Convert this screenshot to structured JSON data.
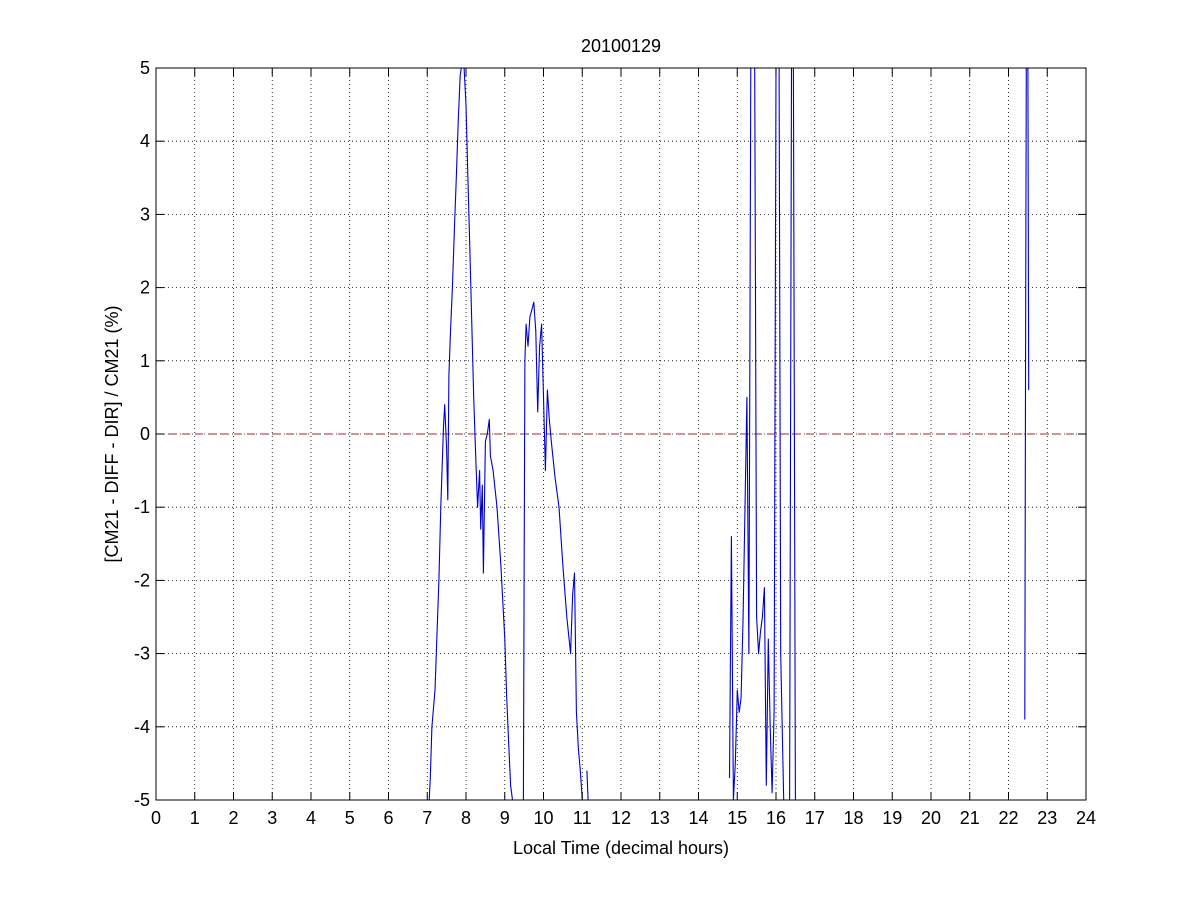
{
  "chart_data": {
    "type": "line",
    "title": "20100129",
    "xlabel": "Local Time (decimal hours)",
    "ylabel": "[CM21 - DIFF - DIR] / CM21 (%)",
    "xlim": [
      0,
      24
    ],
    "ylim": [
      -5,
      5
    ],
    "xticks": [
      0,
      1,
      2,
      3,
      4,
      5,
      6,
      7,
      8,
      9,
      10,
      11,
      12,
      13,
      14,
      15,
      16,
      17,
      18,
      19,
      20,
      21,
      22,
      23,
      24
    ],
    "yticks": [
      -5,
      -4,
      -3,
      -2,
      -1,
      0,
      1,
      2,
      3,
      4,
      5
    ],
    "grid": true,
    "reference_line": {
      "y": 0,
      "color": "#a52a2a",
      "style": "dashed"
    },
    "series": [
      {
        "color": "#0000cc",
        "segments": [
          [
            [
              7.05,
              -5
            ],
            [
              7.08,
              -4.7
            ],
            [
              7.12,
              -4.0
            ],
            [
              7.2,
              -3.5
            ],
            [
              7.3,
              -2.0
            ],
            [
              7.35,
              -1.0
            ],
            [
              7.42,
              0.1
            ],
            [
              7.45,
              0.4
            ],
            [
              7.5,
              -0.2
            ],
            [
              7.53,
              -0.9
            ],
            [
              7.56,
              0.8
            ],
            [
              7.6,
              1.4
            ],
            [
              7.65,
              2.0
            ],
            [
              7.7,
              2.8
            ],
            [
              7.75,
              3.5
            ],
            [
              7.8,
              4.3
            ],
            [
              7.85,
              4.9
            ],
            [
              7.88,
              5
            ]
          ],
          [
            [
              7.95,
              5
            ],
            [
              8.0,
              4.5
            ],
            [
              8.05,
              3.5
            ],
            [
              8.1,
              2.5
            ],
            [
              8.15,
              1.5
            ],
            [
              8.2,
              0.5
            ],
            [
              8.25,
              -0.3
            ],
            [
              8.3,
              -1.0
            ],
            [
              8.35,
              -0.5
            ],
            [
              8.38,
              -1.3
            ],
            [
              8.42,
              -0.7
            ],
            [
              8.45,
              -1.9
            ],
            [
              8.5,
              -0.1
            ],
            [
              8.55,
              0.0
            ],
            [
              8.6,
              0.2
            ],
            [
              8.63,
              -0.3
            ],
            [
              8.7,
              -0.5
            ],
            [
              8.8,
              -1.0
            ],
            [
              8.9,
              -1.8
            ],
            [
              9.0,
              -2.8
            ],
            [
              9.05,
              -3.6
            ],
            [
              9.1,
              -4.2
            ],
            [
              9.15,
              -4.8
            ],
            [
              9.2,
              -5
            ]
          ],
          [
            [
              9.48,
              -5
            ],
            [
              9.5,
              -2.0
            ],
            [
              9.52,
              1.0
            ],
            [
              9.55,
              1.5
            ],
            [
              9.6,
              1.2
            ],
            [
              9.65,
              1.6
            ],
            [
              9.7,
              1.7
            ],
            [
              9.75,
              1.8
            ],
            [
              9.8,
              1.4
            ],
            [
              9.85,
              0.3
            ],
            [
              9.9,
              1.2
            ],
            [
              9.95,
              1.5
            ],
            [
              10.0,
              0.5
            ],
            [
              10.05,
              -0.5
            ],
            [
              10.1,
              0.6
            ],
            [
              10.15,
              0.2
            ],
            [
              10.2,
              -0.1
            ],
            [
              10.3,
              -0.6
            ],
            [
              10.4,
              -1.0
            ],
            [
              10.5,
              -1.8
            ],
            [
              10.6,
              -2.5
            ],
            [
              10.7,
              -3.0
            ],
            [
              10.75,
              -2.2
            ],
            [
              10.8,
              -1.9
            ],
            [
              10.85,
              -3.8
            ],
            [
              10.9,
              -4.3
            ],
            [
              10.95,
              -4.6
            ],
            [
              11.0,
              -5
            ]
          ],
          [
            [
              11.12,
              -4.6
            ],
            [
              11.15,
              -5
            ]
          ],
          [
            [
              14.8,
              -4.7
            ],
            [
              14.85,
              -1.4
            ],
            [
              14.9,
              -5
            ],
            [
              14.95,
              -4.5
            ],
            [
              15.0,
              -3.5
            ],
            [
              15.05,
              -3.8
            ],
            [
              15.1,
              -3.6
            ],
            [
              15.15,
              -2.5
            ],
            [
              15.2,
              -1.0
            ],
            [
              15.25,
              0.5
            ],
            [
              15.3,
              -3.0
            ],
            [
              15.35,
              5
            ]
          ],
          [
            [
              15.45,
              5
            ],
            [
              15.5,
              -2.5
            ],
            [
              15.55,
              -3.0
            ],
            [
              15.6,
              -2.7
            ],
            [
              15.65,
              -2.5
            ],
            [
              15.7,
              -2.1
            ],
            [
              15.75,
              -4.8
            ],
            [
              15.8,
              -2.8
            ],
            [
              15.85,
              -4.0
            ],
            [
              15.9,
              -4.9
            ],
            [
              15.95,
              -3.8
            ],
            [
              16.0,
              5
            ]
          ],
          [
            [
              16.08,
              5
            ],
            [
              16.12,
              -3.0
            ],
            [
              16.2,
              -5
            ]
          ],
          [
            [
              16.35,
              -5
            ],
            [
              16.4,
              5
            ]
          ],
          [
            [
              16.45,
              5
            ],
            [
              16.5,
              -5
            ]
          ],
          [
            [
              22.42,
              -3.9
            ],
            [
              22.44,
              1.3
            ],
            [
              22.46,
              5
            ]
          ],
          [
            [
              22.5,
              5
            ],
            [
              22.52,
              0.6
            ]
          ]
        ]
      }
    ]
  }
}
